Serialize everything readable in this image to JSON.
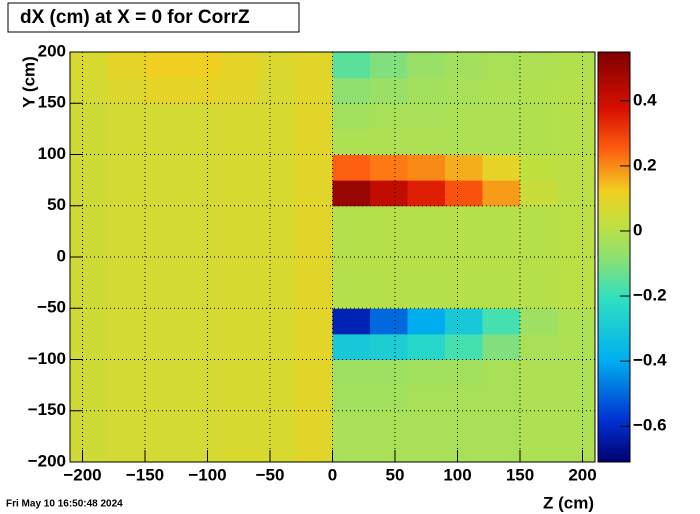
{
  "chart_data": {
    "type": "heatmap",
    "title": "dX (cm) at X = 0 for CorrZ",
    "xlabel": "Z (cm)",
    "ylabel": "Y (cm)",
    "footer": "Fri May 10 16:50:48 2024",
    "xlim": [
      -210,
      210
    ],
    "ylim": [
      -200,
      200
    ],
    "zlim": [
      -0.71,
      0.55
    ],
    "xticks": [
      {
        "value": -200,
        "label": "−200"
      },
      {
        "value": -150,
        "label": "−150"
      },
      {
        "value": -100,
        "label": "−100"
      },
      {
        "value": -50,
        "label": "−50"
      },
      0,
      50,
      100,
      150,
      200
    ],
    "yticks": [
      {
        "value": -200,
        "label": "−200"
      },
      {
        "value": -150,
        "label": "−150"
      },
      {
        "value": -100,
        "label": "−100"
      },
      {
        "value": -50,
        "label": "−50"
      },
      0,
      50,
      100,
      150,
      200
    ],
    "zticks": [
      {
        "value": -0.6,
        "label": "−0.6"
      },
      {
        "value": -0.4,
        "label": "−0.4"
      },
      {
        "value": -0.2,
        "label": "−0.2"
      },
      0,
      0.2,
      0.4
    ],
    "grid": true,
    "colormap": [
      {
        "pos": 0,
        "color": "#000070"
      },
      {
        "pos": 0.1,
        "color": "#0030d0"
      },
      {
        "pos": 0.25,
        "color": "#00b0f0"
      },
      {
        "pos": 0.4,
        "color": "#30e0c0"
      },
      {
        "pos": 0.5,
        "color": "#90e070"
      },
      {
        "pos": 0.58,
        "color": "#c0e040"
      },
      {
        "pos": 0.66,
        "color": "#f0d020"
      },
      {
        "pos": 0.76,
        "color": "#ff6010"
      },
      {
        "pos": 0.86,
        "color": "#d81000"
      },
      {
        "pos": 1,
        "color": "#800000"
      }
    ],
    "xbins": [
      -210,
      -180,
      -150,
      -120,
      -90,
      -60,
      -30,
      0,
      30,
      60,
      90,
      120,
      150,
      180,
      210
    ],
    "ybins": [
      -200,
      -175,
      -150,
      -125,
      -100,
      -75,
      -50,
      -25,
      0,
      25,
      50,
      75,
      100,
      125,
      150,
      175,
      200
    ],
    "z": [
      [
        0.05,
        0.06,
        0.06,
        0.06,
        0.07,
        0.07,
        0.09,
        -0.03,
        -0.03,
        -0.03,
        -0.03,
        -0.03,
        -0.02,
        -0.02
      ],
      [
        0.05,
        0.06,
        0.06,
        0.06,
        0.07,
        0.07,
        0.09,
        -0.03,
        -0.03,
        -0.03,
        -0.03,
        -0.03,
        -0.02,
        -0.02
      ],
      [
        0.05,
        0.06,
        0.06,
        0.06,
        0.07,
        0.07,
        0.09,
        -0.04,
        -0.04,
        -0.03,
        -0.03,
        -0.03,
        -0.02,
        -0.02
      ],
      [
        0.05,
        0.06,
        0.06,
        0.06,
        0.07,
        0.07,
        0.09,
        -0.05,
        -0.05,
        -0.04,
        -0.04,
        -0.03,
        -0.02,
        -0.02
      ],
      [
        0.05,
        0.06,
        0.06,
        0.06,
        0.07,
        0.07,
        0.09,
        -0.3,
        -0.28,
        -0.24,
        -0.18,
        -0.1,
        -0.03,
        -0.02
      ],
      [
        0.05,
        0.06,
        0.06,
        0.06,
        0.07,
        0.07,
        0.09,
        -0.62,
        -0.5,
        -0.4,
        -0.3,
        -0.18,
        -0.05,
        -0.02
      ],
      [
        0.05,
        0.06,
        0.06,
        0.06,
        0.07,
        0.07,
        0.09,
        0.0,
        0.0,
        0.0,
        0.0,
        0.0,
        0.0,
        0.01
      ],
      [
        0.05,
        0.06,
        0.06,
        0.06,
        0.07,
        0.07,
        0.09,
        0.0,
        0.0,
        0.0,
        0.0,
        0.0,
        0.0,
        0.01
      ],
      [
        0.05,
        0.06,
        0.06,
        0.06,
        0.07,
        0.07,
        0.09,
        0.0,
        0.0,
        0.0,
        0.0,
        0.0,
        0.0,
        0.01
      ],
      [
        0.05,
        0.06,
        0.06,
        0.06,
        0.07,
        0.07,
        0.09,
        0.0,
        0.0,
        0.0,
        0.0,
        0.0,
        0.0,
        0.01
      ],
      [
        0.05,
        0.06,
        0.06,
        0.06,
        0.07,
        0.07,
        0.09,
        0.5,
        0.42,
        0.35,
        0.27,
        0.18,
        0.04,
        0.01
      ],
      [
        0.05,
        0.06,
        0.06,
        0.06,
        0.07,
        0.07,
        0.09,
        0.25,
        0.22,
        0.2,
        0.16,
        0.1,
        0.02,
        0.01
      ],
      [
        0.05,
        0.06,
        0.06,
        0.06,
        0.07,
        0.07,
        0.09,
        -0.02,
        -0.02,
        -0.02,
        -0.02,
        -0.02,
        -0.01,
        0.0
      ],
      [
        0.05,
        0.06,
        0.06,
        0.06,
        0.07,
        0.07,
        0.09,
        -0.04,
        -0.03,
        -0.03,
        -0.02,
        -0.02,
        -0.01,
        0.0
      ],
      [
        0.06,
        0.08,
        0.1,
        0.1,
        0.09,
        0.07,
        0.09,
        -0.08,
        -0.06,
        -0.04,
        -0.03,
        -0.02,
        -0.01,
        0.0
      ],
      [
        0.07,
        0.1,
        0.12,
        0.12,
        0.1,
        0.08,
        0.09,
        -0.15,
        -0.1,
        -0.06,
        -0.04,
        -0.03,
        -0.02,
        -0.01
      ]
    ]
  }
}
